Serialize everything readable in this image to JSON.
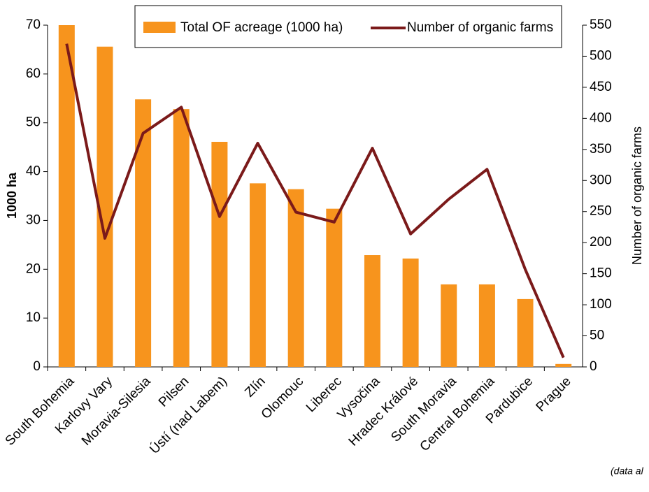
{
  "chart_data": {
    "type": "bar_line",
    "categories": [
      "South Bohemia",
      "Karlovy Vary",
      "Moravia-Silesia",
      "Pilsen",
      "Ústí (nad Labem)",
      "Zlín",
      "Olomouc",
      "Liberec",
      "Vysočina",
      "Hradec Králové",
      "South Moravia",
      "Central Bohemia",
      "Pardubice",
      "Prague"
    ],
    "series": [
      {
        "name": "Total OF acreage (1000 ha)",
        "type": "bar",
        "color": "#f7941d",
        "values": [
          70.0,
          65.6,
          54.8,
          52.8,
          46.1,
          37.6,
          36.4,
          32.4,
          22.9,
          22.2,
          16.9,
          16.9,
          13.9,
          0.6
        ]
      },
      {
        "name": "Number of organic farms",
        "type": "line",
        "axis": "y2",
        "color": "#7b1a1a",
        "values": [
          520,
          207,
          376,
          418,
          242,
          360,
          249,
          233,
          352,
          214,
          270,
          318,
          157,
          15
        ]
      }
    ],
    "ylabel": "1000 ha",
    "y2label": "Number of organic farms",
    "ylim": [
      0,
      70
    ],
    "yticks": [
      0,
      10,
      20,
      30,
      40,
      50,
      60,
      70
    ],
    "y2lim": [
      0,
      550
    ],
    "y2ticks": [
      0,
      50,
      100,
      150,
      200,
      250,
      300,
      350,
      400,
      450,
      500,
      550
    ],
    "annotation": "(data al"
  }
}
